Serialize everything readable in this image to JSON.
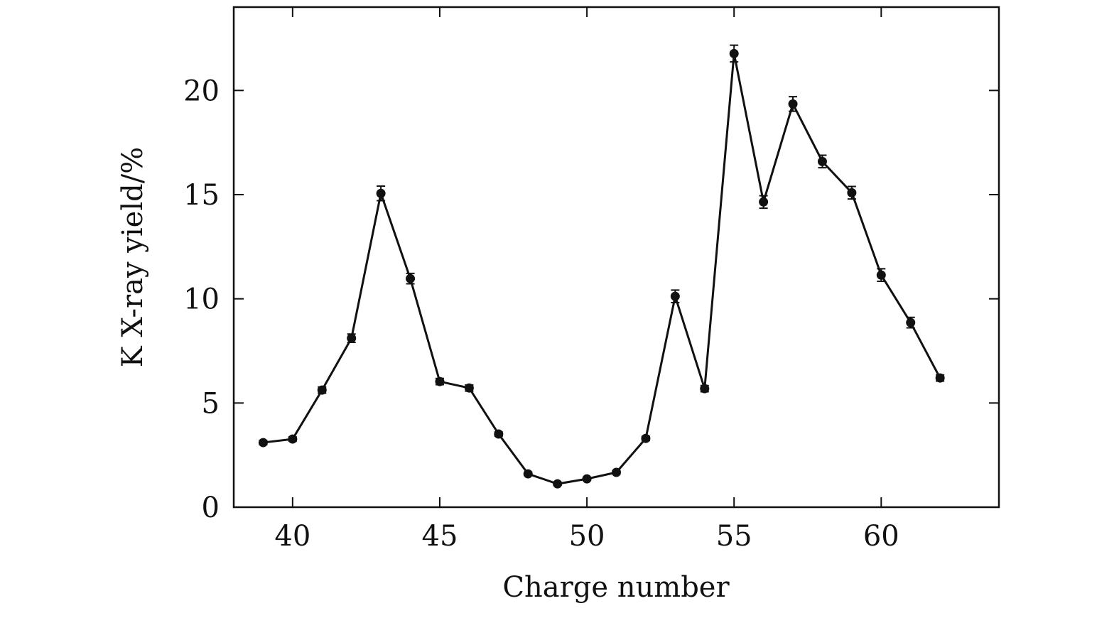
{
  "chart_data": {
    "type": "line",
    "x_label": "Charge number",
    "y_label": "K X-ray yield/%",
    "x": [
      39,
      40,
      41,
      42,
      43,
      44,
      45,
      46,
      47,
      48,
      49,
      50,
      51,
      52,
      53,
      54,
      55,
      56,
      57,
      58,
      59,
      60,
      61,
      62
    ],
    "series": [
      {
        "name": "K X-ray yield",
        "color": "#111111",
        "values": [
          3.1,
          3.27,
          5.62,
          8.11,
          15.06,
          10.97,
          6.03,
          5.72,
          3.51,
          1.6,
          1.12,
          1.36,
          1.67,
          3.3,
          10.12,
          5.69,
          21.77,
          14.65,
          19.35,
          16.59,
          15.09,
          11.14,
          8.86,
          6.2
        ],
        "errors": [
          0.1,
          0.1,
          0.15,
          0.2,
          0.35,
          0.25,
          0.15,
          0.15,
          0.1,
          0.08,
          0.06,
          0.07,
          0.08,
          0.1,
          0.3,
          0.15,
          0.4,
          0.3,
          0.35,
          0.3,
          0.3,
          0.3,
          0.25,
          0.15
        ]
      }
    ],
    "xlim": [
      38,
      64
    ],
    "xticks": [
      40,
      45,
      50,
      55,
      60
    ],
    "ylim": [
      0,
      24
    ],
    "yticks": [
      0,
      5,
      10,
      15,
      20
    ]
  }
}
